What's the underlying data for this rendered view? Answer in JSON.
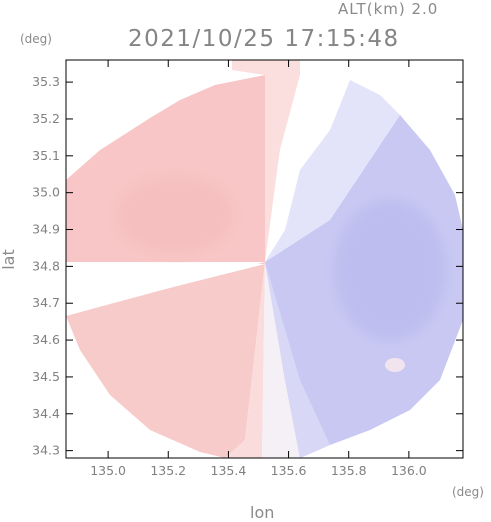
{
  "header": {
    "altitude_label": "ALT(km) 2.0",
    "timestamp": "2021/10/25 17:15:48"
  },
  "axes": {
    "lat_unit": "(deg)",
    "lon_unit": "(deg)",
    "lat_label": "lat",
    "lon_label": "lon",
    "lat_range": [
      34.28,
      35.36
    ],
    "lon_range": [
      134.86,
      136.18
    ],
    "lat_ticks": [
      "35.3",
      "35.2",
      "35.1",
      "35.0",
      "34.9",
      "34.8",
      "34.7",
      "34.6",
      "34.5",
      "34.4",
      "34.3"
    ],
    "lat_tick_values": [
      35.3,
      35.2,
      35.1,
      35.0,
      34.9,
      34.8,
      34.7,
      34.6,
      34.5,
      34.4,
      34.3
    ],
    "lon_ticks": [
      "135.0",
      "135.2",
      "135.4",
      "135.6",
      "135.8",
      "136.0"
    ],
    "lon_tick_values": [
      135.0,
      135.2,
      135.4,
      135.6,
      135.8,
      136.0
    ]
  },
  "radar": {
    "center_lat": 34.81,
    "center_lon": 135.53,
    "colors": {
      "receding": "#f9c9c9",
      "receding_light": "#fbdede",
      "neutral": "#ffffff",
      "approaching_light": "#dcdcf8",
      "approaching": "#c4c4f2",
      "frame": "#000000"
    }
  }
}
